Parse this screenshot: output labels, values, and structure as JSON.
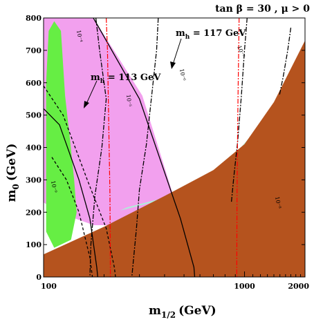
{
  "chart_data": {
    "type": "area",
    "title": "tan β = 30 ,  μ > 0",
    "xlabel": "m",
    "xlabel_sub": "1/2",
    "xlabel_unit": "(GeV)",
    "ylabel": "m",
    "ylabel_sub": "0",
    "ylabel_unit": "(GeV)",
    "xscale": "log",
    "xlim": [
      100,
      2000
    ],
    "ylim": [
      0,
      800
    ],
    "x_ticks": [
      100,
      1000,
      2000
    ],
    "x_tick_labels": [
      "100",
      "1000",
      "2000"
    ],
    "y_ticks": [
      0,
      100,
      200,
      300,
      400,
      500,
      600,
      700,
      800
    ],
    "y_tick_labels": [
      "0",
      "100",
      "200",
      "300",
      "400",
      "500",
      "600",
      "700",
      "800"
    ],
    "regions": [
      {
        "name": "pink",
        "color": "#f2a0ee",
        "points": [
          [
            100,
            800
          ],
          [
            177,
            800
          ],
          [
            310,
            560
          ],
          [
            480,
            180
          ],
          [
            260,
            160
          ],
          [
            178,
            160
          ],
          [
            130,
            190
          ],
          [
            100,
            230
          ]
        ]
      },
      {
        "name": "green",
        "color": "#66ee44",
        "points": [
          [
            106,
            760
          ],
          [
            113,
            790
          ],
          [
            122,
            760
          ],
          [
            128,
            560
          ],
          [
            135,
            430
          ],
          [
            142,
            300
          ],
          [
            146,
            200
          ],
          [
            137,
            115
          ],
          [
            113,
            90
          ],
          [
            103,
            140
          ],
          [
            103,
            600
          ]
        ]
      },
      {
        "name": "cyan-band",
        "color": "#aef0d8",
        "points": [
          [
            240,
            205
          ],
          [
            400,
            240
          ],
          [
            700,
            320
          ],
          [
            1100,
            420
          ],
          [
            1400,
            530
          ],
          [
            1600,
            580
          ],
          [
            1500,
            560
          ],
          [
            1200,
            470
          ],
          [
            900,
            380
          ],
          [
            600,
            290
          ],
          [
            400,
            245
          ],
          [
            260,
            215
          ]
        ]
      },
      {
        "name": "brown",
        "color": "#b5531e",
        "points": [
          [
            100,
            70
          ],
          [
            200,
            155
          ],
          [
            400,
            250
          ],
          [
            700,
            330
          ],
          [
            1000,
            410
          ],
          [
            1400,
            540
          ],
          [
            2000,
            730
          ],
          [
            2000,
            0
          ],
          [
            100,
            0
          ]
        ]
      }
    ],
    "curves": [
      {
        "style": "solid",
        "color": "#000000",
        "points": [
          [
            100,
            520
          ],
          [
            120,
            470
          ],
          [
            150,
            300
          ],
          [
            170,
            180
          ],
          [
            184,
            30
          ],
          [
            186,
            0
          ]
        ]
      },
      {
        "style": "solid",
        "color": "#000000",
        "points": [
          [
            177,
            800
          ],
          [
            300,
            550
          ],
          [
            480,
            180
          ],
          [
            560,
            30
          ],
          [
            565,
            0
          ]
        ]
      },
      {
        "style": "dashed",
        "color": "#000000",
        "points": [
          [
            100,
            590
          ],
          [
            125,
            500
          ],
          [
            165,
            300
          ],
          [
            205,
            150
          ],
          [
            225,
            30
          ],
          [
            228,
            0
          ]
        ]
      },
      {
        "style": "dashed",
        "color": "#000000",
        "points": [
          [
            110,
            370
          ],
          [
            130,
            300
          ],
          [
            150,
            200
          ],
          [
            170,
            60
          ],
          [
            175,
            0
          ]
        ]
      },
      {
        "style": "dashdot",
        "color": "#000000",
        "points": [
          [
            182,
            800
          ],
          [
            190,
            700
          ],
          [
            205,
            550
          ],
          [
            195,
            400
          ],
          [
            180,
            250
          ],
          [
            172,
            100
          ],
          [
            170,
            0
          ]
        ]
      },
      {
        "style": "dashdot",
        "color": "#000000",
        "points": [
          [
            372,
            800
          ],
          [
            365,
            700
          ],
          [
            345,
            560
          ],
          [
            325,
            410
          ],
          [
            300,
            270
          ],
          [
            290,
            150
          ],
          [
            275,
            0
          ]
        ]
      },
      {
        "style": "dashdot",
        "color": "#000000",
        "points": [
          [
            1030,
            800
          ],
          [
            1000,
            700
          ],
          [
            965,
            560
          ],
          [
            925,
            420
          ],
          [
            885,
            310
          ],
          [
            860,
            230
          ]
        ]
      },
      {
        "style": "dashdot",
        "color": "#000000",
        "points": [
          [
            1700,
            770
          ],
          [
            1640,
            700
          ],
          [
            1560,
            620
          ],
          [
            1490,
            560
          ]
        ]
      },
      {
        "style": "dashdot",
        "color": "#ff0000",
        "points": [
          [
            205,
            800
          ],
          [
            208,
            700
          ],
          [
            210,
            550
          ],
          [
            212,
            400
          ],
          [
            214,
            250
          ],
          [
            215,
            0
          ]
        ]
      },
      {
        "style": "dashdot",
        "color": "#ff0000",
        "points": [
          [
            940,
            800
          ],
          [
            935,
            700
          ],
          [
            928,
            550
          ],
          [
            922,
            400
          ],
          [
            918,
            250
          ],
          [
            915,
            0
          ]
        ]
      }
    ],
    "annotations": [
      {
        "text": "m",
        "sub": "h",
        "rest": " = 113 GeV"
      },
      {
        "text": "m",
        "sub": "h",
        "rest": " = 117 GeV"
      },
      {
        "text": "10⁻⁴"
      },
      {
        "text": "10⁻⁵"
      },
      {
        "text": "10⁻⁶"
      },
      {
        "text": "10⁻⁷"
      },
      {
        "text": "10⁻⁸"
      },
      {
        "text": "10⁻⁹"
      }
    ]
  }
}
